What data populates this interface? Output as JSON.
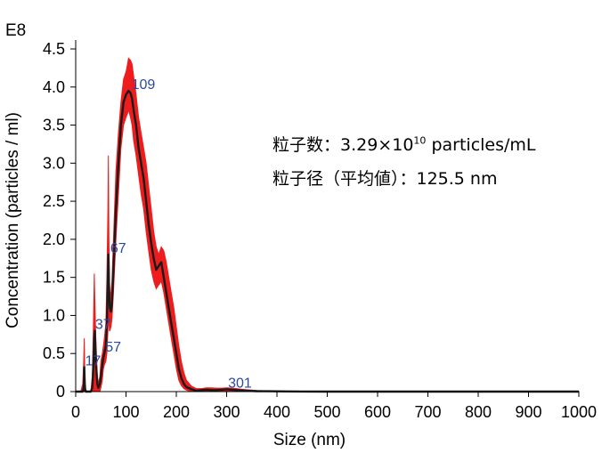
{
  "chart_data": {
    "type": "line",
    "xlabel": "Size (nm)",
    "ylabel": "Concentration (particles / ml)",
    "y_multiplier_label": "E8",
    "xlim": [
      0,
      1000
    ],
    "ylim": [
      0,
      4.5
    ],
    "x_ticks": [
      "0",
      "100",
      "200",
      "300",
      "400",
      "500",
      "600",
      "700",
      "800",
      "900",
      "1000"
    ],
    "y_ticks": [
      "0",
      "0.5",
      "1.0",
      "1.5",
      "2.0",
      "2.5",
      "3.0",
      "3.5",
      "4.0",
      "4.5"
    ],
    "colors": {
      "mean": "#1a1a1a",
      "error_band": "#ee1c1c",
      "peak_labels": "#2a4aa0"
    },
    "mean_series": {
      "x": [
        0,
        10,
        14,
        16,
        17,
        18,
        19,
        20,
        22,
        25,
        28,
        30,
        33,
        35,
        37,
        38,
        40,
        43,
        45,
        48,
        50,
        53,
        55,
        57,
        60,
        62,
        64,
        65,
        66,
        67,
        68,
        70,
        72,
        75,
        80,
        85,
        90,
        95,
        100,
        105,
        109,
        112,
        115,
        120,
        125,
        130,
        135,
        140,
        145,
        150,
        155,
        160,
        165,
        170,
        175,
        180,
        185,
        190,
        195,
        200,
        205,
        210,
        215,
        220,
        230,
        240,
        250,
        260,
        270,
        280,
        290,
        301,
        310,
        320,
        330,
        340,
        350,
        360,
        380,
        400,
        420,
        450,
        500,
        600,
        700,
        800,
        900,
        1000
      ],
      "y": [
        0,
        0,
        0,
        0.05,
        0.32,
        0.1,
        0.02,
        0,
        0,
        0,
        0,
        0,
        0.05,
        0.3,
        0.72,
        0.8,
        0.4,
        0.1,
        0.05,
        0.1,
        0.2,
        0.35,
        0.45,
        0.5,
        0.6,
        0.9,
        1.5,
        1.8,
        1.4,
        1.2,
        1.1,
        1.05,
        1.15,
        1.6,
        2.4,
        3.0,
        3.5,
        3.8,
        3.9,
        3.95,
        3.92,
        3.85,
        3.7,
        3.5,
        3.2,
        3.0,
        2.8,
        2.5,
        2.2,
        1.95,
        1.75,
        1.6,
        1.65,
        1.7,
        1.5,
        1.3,
        1.1,
        0.9,
        0.7,
        0.5,
        0.3,
        0.18,
        0.1,
        0.06,
        0.03,
        0.01,
        0.02,
        0.025,
        0.02,
        0.02,
        0.025,
        0.03,
        0.025,
        0.02,
        0.015,
        0.01,
        0.008,
        0.006,
        0.005,
        0.003,
        0.002,
        0.001,
        0,
        0,
        0,
        0,
        0,
        0
      ]
    },
    "error_band": {
      "x": [
        10,
        14,
        16,
        17,
        18,
        19,
        22,
        30,
        33,
        35,
        37,
        38,
        40,
        43,
        45,
        48,
        50,
        53,
        55,
        57,
        60,
        62,
        64,
        65,
        66,
        67,
        68,
        70,
        72,
        75,
        80,
        85,
        90,
        95,
        100,
        103,
        105,
        109,
        112,
        115,
        120,
        125,
        130,
        135,
        140,
        145,
        150,
        155,
        160,
        165,
        170,
        175,
        180,
        185,
        190,
        195,
        200,
        205,
        210,
        215,
        220,
        230,
        240,
        250,
        260,
        270,
        280,
        290,
        301,
        310,
        320,
        330,
        340,
        350,
        360,
        380,
        400,
        420,
        450,
        500,
        600,
        700,
        800,
        900,
        1000
      ],
      "upper": [
        0,
        0.1,
        0.4,
        0.7,
        0.3,
        0.05,
        0,
        0,
        0.2,
        0.8,
        1.55,
        1.2,
        0.7,
        0.2,
        0.1,
        0.2,
        0.4,
        0.5,
        0.6,
        0.7,
        0.9,
        1.5,
        2.4,
        3.1,
        2.0,
        1.5,
        1.3,
        1.3,
        1.45,
        2.0,
        2.9,
        3.4,
        3.8,
        4.1,
        4.2,
        4.3,
        4.38,
        4.35,
        4.3,
        4.15,
        3.9,
        3.6,
        3.4,
        3.2,
        3.0,
        2.7,
        2.4,
        2.1,
        1.9,
        1.8,
        1.9,
        1.85,
        1.7,
        1.5,
        1.3,
        1.1,
        0.85,
        0.6,
        0.4,
        0.25,
        0.15,
        0.07,
        0.04,
        0.04,
        0.05,
        0.05,
        0.045,
        0.045,
        0.05,
        0.045,
        0.04,
        0.03,
        0.025,
        0.02,
        0.015,
        0.01,
        0.008,
        0.006,
        0.004,
        0.003,
        0.002,
        0.002,
        0.002,
        0.002,
        0.002
      ],
      "lower": [
        0,
        0,
        0,
        0,
        0,
        0,
        0,
        0,
        0,
        0,
        0,
        0,
        0,
        0,
        0,
        0,
        0.05,
        0.15,
        0.3,
        0.35,
        0.4,
        0.5,
        0.8,
        1.0,
        0.9,
        0.8,
        0.8,
        0.85,
        0.95,
        1.3,
        2.0,
        2.6,
        3.2,
        3.5,
        3.6,
        3.65,
        3.7,
        3.6,
        3.5,
        3.3,
        3.1,
        2.85,
        2.6,
        2.4,
        2.1,
        1.85,
        1.6,
        1.45,
        1.35,
        1.4,
        1.45,
        1.3,
        1.1,
        0.9,
        0.7,
        0.5,
        0.3,
        0.15,
        0.08,
        0.04,
        0.02,
        0,
        0,
        0,
        0,
        0,
        0,
        0,
        0,
        0,
        0,
        0,
        0,
        0,
        0,
        0,
        0,
        0,
        0,
        0,
        0,
        0,
        0,
        0,
        0
      ]
    },
    "peak_labels": [
      {
        "text": "17",
        "x": 17,
        "y": 0.32
      },
      {
        "text": "37",
        "x": 37,
        "y": 0.8
      },
      {
        "text": "57",
        "x": 57,
        "y": 0.5
      },
      {
        "text": "67",
        "x": 67,
        "y": 1.8
      },
      {
        "text": "109",
        "x": 109,
        "y": 3.95
      },
      {
        "text": "301",
        "x": 301,
        "y": 0.03
      }
    ]
  },
  "annotations": {
    "count_prefix": "粒子数：3.29×10",
    "count_exponent": "10",
    "count_suffix": " particles/mL",
    "size_text": "粒子径（平均値）：125.5 nm"
  }
}
